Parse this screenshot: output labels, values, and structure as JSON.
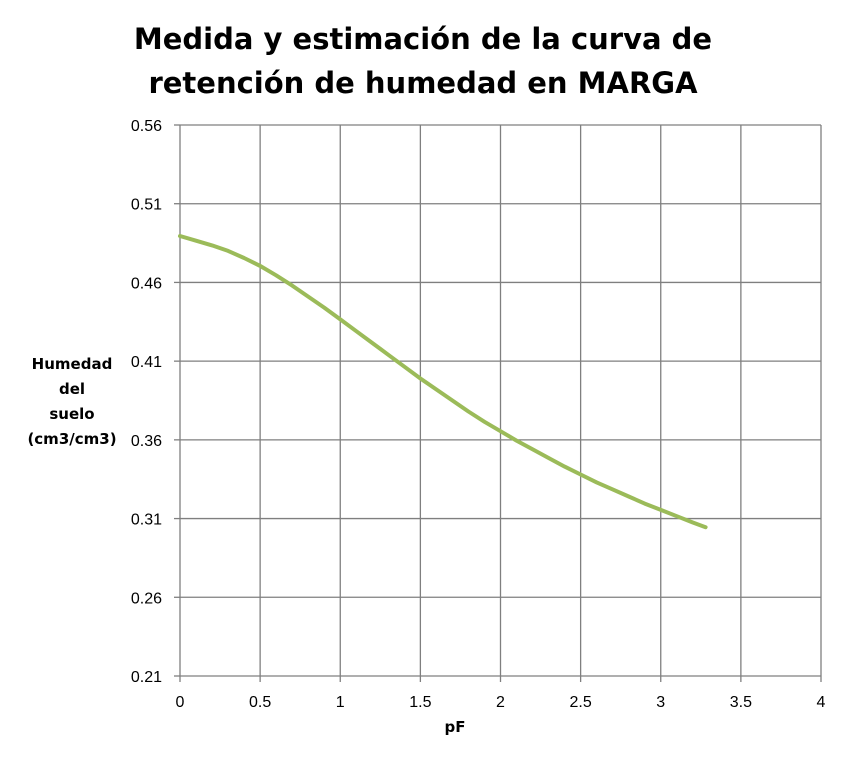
{
  "chart_data": {
    "type": "line",
    "title_lines": [
      "Medida y estimación de la curva de",
      "retención de humedad en MARGA"
    ],
    "xlabel": "pF",
    "ylabel_lines": [
      "Humedad",
      "del",
      "suelo",
      "(cm3/cm3)"
    ],
    "xlim": [
      0,
      4
    ],
    "ylim": [
      0.21,
      0.56
    ],
    "x_ticks": [
      "0",
      "0.5",
      "1",
      "1.5",
      "2",
      "2.5",
      "3",
      "3.5",
      "4"
    ],
    "y_ticks": [
      "0.21",
      "0.26",
      "0.31",
      "0.36",
      "0.41",
      "0.46",
      "0.51",
      "0.56"
    ],
    "grid": true,
    "series": [
      {
        "color": "#9bbb59",
        "x": [
          0,
          0.1,
          0.2,
          0.3,
          0.4,
          0.5,
          0.6,
          0.7,
          0.8,
          0.9,
          1.0,
          1.1,
          1.2,
          1.3,
          1.4,
          1.5,
          1.6,
          1.7,
          1.8,
          1.9,
          2.0,
          2.1,
          2.2,
          2.3,
          2.4,
          2.5,
          2.6,
          2.7,
          2.8,
          2.9,
          3.0,
          3.1,
          3.2,
          3.28
        ],
        "y": [
          0.4895,
          0.4865,
          0.4835,
          0.48,
          0.4755,
          0.4705,
          0.4645,
          0.458,
          0.451,
          0.444,
          0.4365,
          0.429,
          0.4215,
          0.414,
          0.4065,
          0.399,
          0.392,
          0.385,
          0.378,
          0.3715,
          0.3655,
          0.3595,
          0.354,
          0.3485,
          0.343,
          0.338,
          0.333,
          0.3285,
          0.324,
          0.3195,
          0.3155,
          0.3115,
          0.3075,
          0.3045
        ]
      }
    ]
  }
}
